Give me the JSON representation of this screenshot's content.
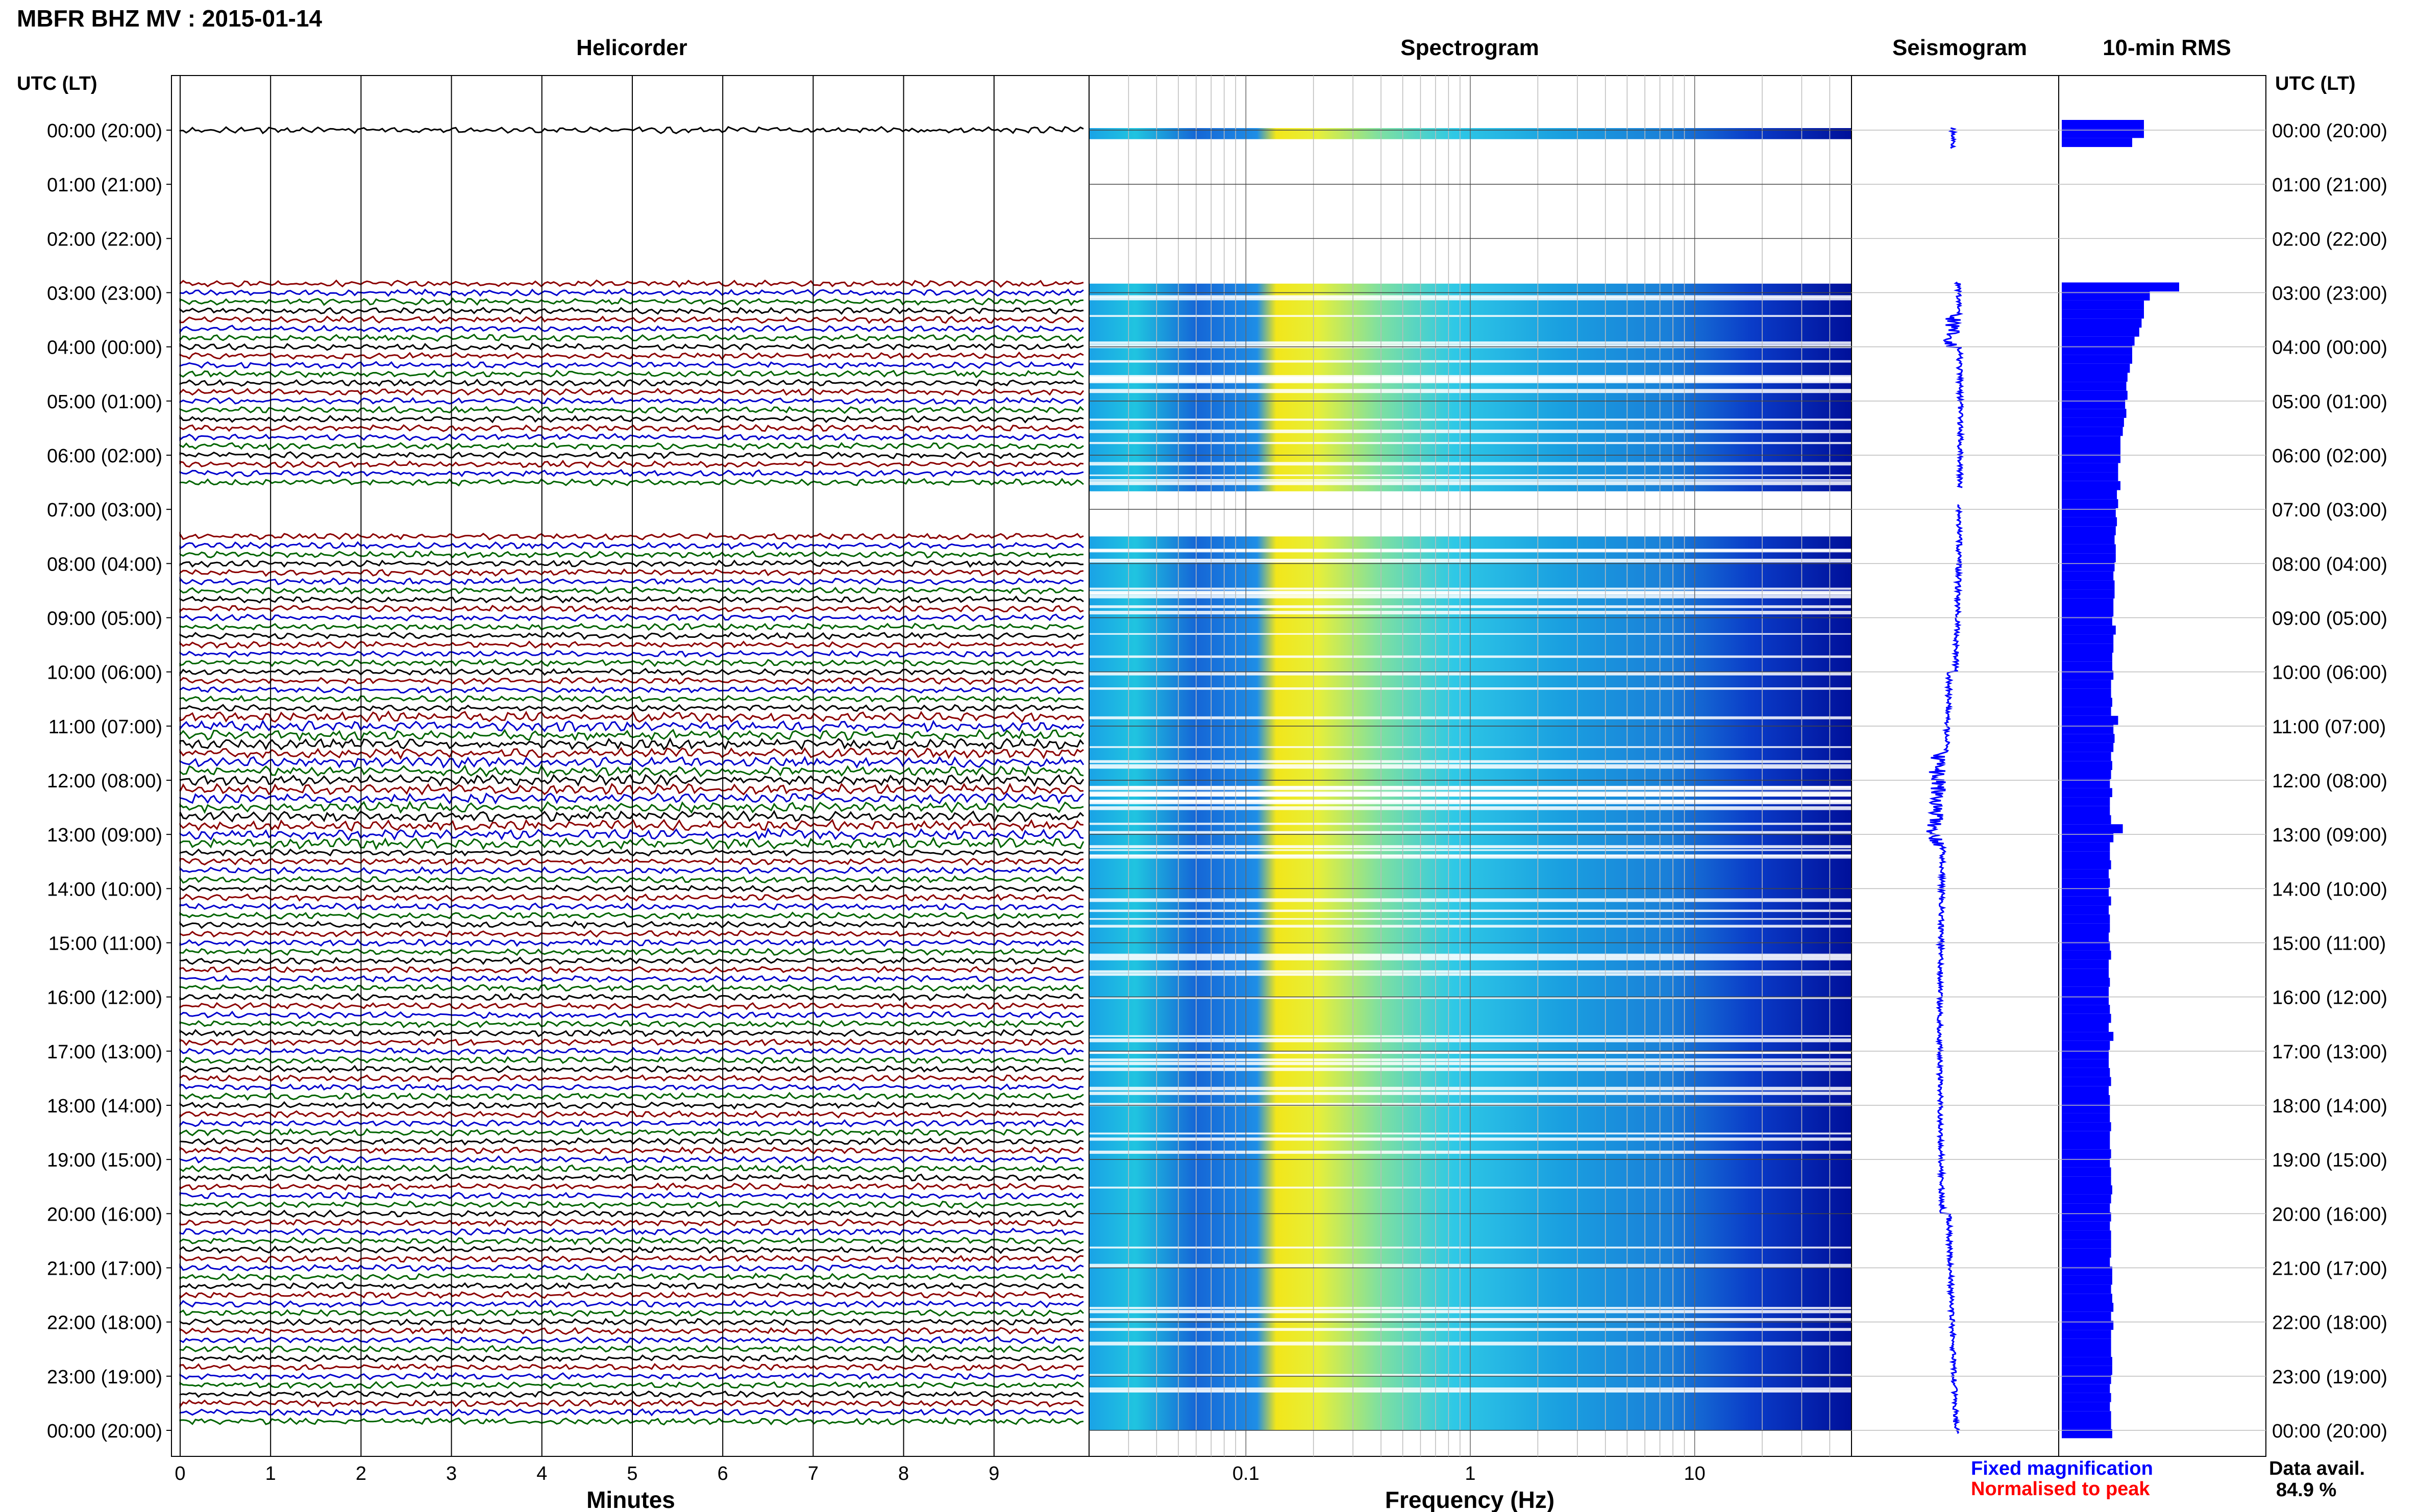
{
  "title": "MBFR BHZ MV : 2015-01-14",
  "panels": {
    "helicorder": "Helicorder",
    "spectrogram": "Spectrogram",
    "seismogram": "Seismogram",
    "rms": "10-min RMS"
  },
  "axis_header_left": "UTC (LT)",
  "axis_header_right": "UTC (LT)",
  "time_labels": [
    "00:00 (20:00)",
    "01:00 (21:00)",
    "02:00 (22:00)",
    "03:00 (23:00)",
    "04:00 (00:00)",
    "05:00 (01:00)",
    "06:00 (02:00)",
    "07:00 (03:00)",
    "08:00 (04:00)",
    "09:00 (05:00)",
    "10:00 (06:00)",
    "11:00 (07:00)",
    "12:00 (08:00)",
    "13:00 (09:00)",
    "14:00 (10:00)",
    "15:00 (11:00)",
    "16:00 (12:00)",
    "17:00 (13:00)",
    "18:00 (14:00)",
    "19:00 (15:00)",
    "20:00 (16:00)",
    "21:00 (17:00)",
    "22:00 (18:00)",
    "23:00 (19:00)",
    "00:00 (20:00)"
  ],
  "minutes_ticks": [
    "0",
    "1",
    "2",
    "3",
    "4",
    "5",
    "6",
    "7",
    "8",
    "9"
  ],
  "minutes_label": "Minutes",
  "freq_ticks": [
    "0.1",
    "1",
    "10"
  ],
  "freq_label": "Frequency (Hz)",
  "legend": {
    "fixed": "Fixed magnification",
    "normalised": "Normalised to peak",
    "fixed_color": "#0000ff",
    "normalised_color": "#ff0000"
  },
  "data_avail": {
    "label": "Data avail.",
    "value": "84.9 %"
  },
  "colors": {
    "trace_cycle": [
      "#000000",
      "#8b0000",
      "#0000cd",
      "#006400"
    ],
    "rms_bar": "#0000ff",
    "spectro_low": "#00008b",
    "spectro_high": "#ffff00"
  },
  "chart_data": {
    "type": "heatmap",
    "title": "MBFR BHZ MV : 2015-01-14",
    "xlabel": "Frequency (Hz)",
    "x_scale": "log",
    "xlim": [
      0.02,
      50
    ],
    "ylabel": "UTC (LT)",
    "ylim_hours": [
      0,
      24
    ],
    "data_gaps_hours": [
      [
        0.1,
        2.8
      ],
      [
        6.6,
        7.4
      ]
    ],
    "rms_10min": [
      0.7,
      0.7,
      0.6,
      0,
      0,
      0,
      0,
      0,
      0,
      0,
      0,
      0,
      0,
      0,
      0,
      0,
      0,
      0,
      1.0,
      0.75,
      0.7,
      0.7,
      0.68,
      0.66,
      0.62,
      0.6,
      0.6,
      0.58,
      0.56,
      0.55,
      0.56,
      0.54,
      0.55,
      0.53,
      0.52,
      0.5,
      0.5,
      0.5,
      0.48,
      0.48,
      0.5,
      0.47,
      0.48,
      0.46,
      0.47,
      0.46,
      0.45,
      0.46,
      0.46,
      0.45,
      0.44,
      0.45,
      0.45,
      0.44,
      0.44,
      0.43,
      0.46,
      0.44,
      0.44,
      0.43,
      0.43,
      0.44,
      0.42,
      0.42,
      0.43,
      0.42,
      0.48,
      0.44,
      0.45,
      0.44,
      0.42,
      0.43,
      0.42,
      0.41,
      0.43,
      0.41,
      0.41,
      0.42,
      0.52,
      0.44,
      0.41,
      0.41,
      0.42,
      0.4,
      0.41,
      0.4,
      0.42,
      0.4,
      0.41,
      0.41,
      0.4,
      0.41,
      0.42,
      0.4,
      0.4,
      0.41,
      0.4,
      0.4,
      0.41,
      0.42,
      0.4,
      0.44,
      0.41,
      0.4,
      0.4,
      0.41,
      0.42,
      0.4,
      0.41,
      0.41,
      0.41,
      0.42,
      0.41,
      0.41,
      0.42,
      0.41,
      0.42,
      0.42,
      0.43,
      0.42,
      0.41,
      0.42,
      0.41,
      0.42,
      0.42,
      0.42,
      0.41,
      0.43,
      0.43,
      0.42,
      0.43,
      0.44,
      0.42,
      0.44,
      0.42,
      0.42,
      0.42,
      0.43,
      0.43,
      0.42,
      0.41,
      0.42,
      0.41,
      0.42,
      0.42,
      0.43
    ]
  }
}
